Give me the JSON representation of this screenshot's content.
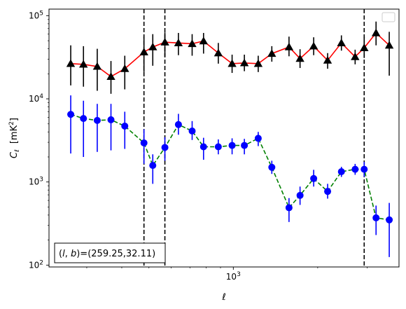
{
  "chart_data": {
    "type": "scatter",
    "title": "",
    "xlabel": "ℓ",
    "ylabel": "C_ℓ [mK²]",
    "xscale": "log",
    "yscale": "log",
    "xlim": [
      220,
      3900
    ],
    "ylim": [
      95,
      120000
    ],
    "x_tick_labels": [
      {
        "value": 1000,
        "base": "10",
        "exp": "3"
      }
    ],
    "y_tick_labels": [
      {
        "value": 100,
        "base": "10",
        "exp": "2"
      },
      {
        "value": 1000,
        "base": "10",
        "exp": "3"
      },
      {
        "value": 10000,
        "base": "10",
        "exp": "4"
      },
      {
        "value": 100000,
        "base": "10",
        "exp": "5"
      }
    ],
    "grid": false,
    "legend": "top-right, empty",
    "annotation": {
      "text": "(l,b)=(259.25,32.11)",
      "placement": "bottom-left"
    },
    "vlines": [
      480,
      570,
      2930
    ],
    "series": [
      {
        "color": "#ff0000",
        "marker": "triangle",
        "marker_color": "#000000",
        "errbar_color": "#000000",
        "linestyle": "solid",
        "points": [
          {
            "x": 263,
            "y": 26500,
            "lo": 14500,
            "hi": 44000
          },
          {
            "x": 292,
            "y": 26000,
            "lo": 14000,
            "hi": 43000
          },
          {
            "x": 327,
            "y": 24500,
            "lo": 12500,
            "hi": 40000
          },
          {
            "x": 366,
            "y": 18500,
            "lo": 11500,
            "hi": 28500
          },
          {
            "x": 410,
            "y": 23000,
            "lo": 13000,
            "hi": 33000
          },
          {
            "x": 480,
            "y": 36500,
            "lo": 21000,
            "hi": 56000
          },
          {
            "x": 516,
            "y": 42000,
            "lo": 25000,
            "hi": 60000
          },
          {
            "x": 570,
            "y": 48000,
            "lo": 32000,
            "hi": 63000
          },
          {
            "x": 637,
            "y": 47000,
            "lo": 33500,
            "hi": 62000
          },
          {
            "x": 713,
            "y": 46000,
            "lo": 33000,
            "hi": 60000
          },
          {
            "x": 783,
            "y": 49500,
            "lo": 35000,
            "hi": 62000
          },
          {
            "x": 884,
            "y": 35500,
            "lo": 26500,
            "hi": 47000
          },
          {
            "x": 990,
            "y": 26500,
            "lo": 20500,
            "hi": 34000
          },
          {
            "x": 1095,
            "y": 27000,
            "lo": 21500,
            "hi": 34000
          },
          {
            "x": 1227,
            "y": 26500,
            "lo": 21000,
            "hi": 33000
          },
          {
            "x": 1372,
            "y": 35000,
            "lo": 28000,
            "hi": 43000
          },
          {
            "x": 1580,
            "y": 42000,
            "lo": 32500,
            "hi": 56000
          },
          {
            "x": 1730,
            "y": 30500,
            "lo": 23500,
            "hi": 39500
          },
          {
            "x": 1935,
            "y": 43000,
            "lo": 33500,
            "hi": 55000
          },
          {
            "x": 2170,
            "y": 29000,
            "lo": 23000,
            "hi": 35500
          },
          {
            "x": 2430,
            "y": 47000,
            "lo": 38000,
            "hi": 58000
          },
          {
            "x": 2720,
            "y": 32000,
            "lo": 26000,
            "hi": 39000
          },
          {
            "x": 2930,
            "y": 41000,
            "lo": 31000,
            "hi": 56000
          },
          {
            "x": 3230,
            "y": 62000,
            "lo": 44000,
            "hi": 85000
          },
          {
            "x": 3600,
            "y": 44000,
            "lo": 19000,
            "hi": 64000
          }
        ]
      },
      {
        "color": "#008000",
        "marker": "circle",
        "marker_color": "#0000ff",
        "errbar_color": "#0000ff",
        "linestyle": "dashed",
        "points": [
          {
            "x": 263,
            "y": 6500,
            "lo": 2200,
            "hi": 11000
          },
          {
            "x": 292,
            "y": 5800,
            "lo": 2000,
            "hi": 9500
          },
          {
            "x": 327,
            "y": 5500,
            "lo": 2300,
            "hi": 8700
          },
          {
            "x": 366,
            "y": 5600,
            "lo": 2400,
            "hi": 8700
          },
          {
            "x": 410,
            "y": 4700,
            "lo": 2500,
            "hi": 7000
          },
          {
            "x": 480,
            "y": 2950,
            "lo": 1650,
            "hi": 4300
          },
          {
            "x": 516,
            "y": 1580,
            "lo": 950,
            "hi": 2150
          },
          {
            "x": 570,
            "y": 2600,
            "lo": 1800,
            "hi": 3450
          },
          {
            "x": 637,
            "y": 4900,
            "lo": 3700,
            "hi": 6600
          },
          {
            "x": 713,
            "y": 4100,
            "lo": 3200,
            "hi": 5400
          },
          {
            "x": 783,
            "y": 2650,
            "lo": 1850,
            "hi": 3400
          },
          {
            "x": 884,
            "y": 2650,
            "lo": 2150,
            "hi": 3250
          },
          {
            "x": 990,
            "y": 2750,
            "lo": 2150,
            "hi": 3350
          },
          {
            "x": 1095,
            "y": 2750,
            "lo": 2150,
            "hi": 3300
          },
          {
            "x": 1227,
            "y": 3350,
            "lo": 2700,
            "hi": 4000
          },
          {
            "x": 1372,
            "y": 1500,
            "lo": 1250,
            "hi": 1800
          },
          {
            "x": 1580,
            "y": 490,
            "lo": 330,
            "hi": 640
          },
          {
            "x": 1730,
            "y": 690,
            "lo": 530,
            "hi": 880
          },
          {
            "x": 1935,
            "y": 1100,
            "lo": 880,
            "hi": 1400
          },
          {
            "x": 2170,
            "y": 770,
            "lo": 630,
            "hi": 950
          },
          {
            "x": 2430,
            "y": 1330,
            "lo": 1150,
            "hi": 1520
          },
          {
            "x": 2720,
            "y": 1420,
            "lo": 1220,
            "hi": 1650
          },
          {
            "x": 2930,
            "y": 1420,
            "lo": 1150,
            "hi": 1750
          },
          {
            "x": 3230,
            "y": 370,
            "lo": 230,
            "hi": 520
          },
          {
            "x": 3600,
            "y": 350,
            "lo": 125,
            "hi": 560
          }
        ]
      }
    ]
  }
}
